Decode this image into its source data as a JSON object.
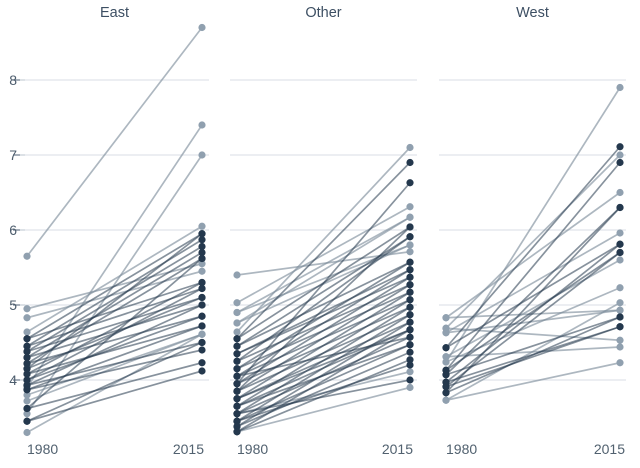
{
  "chart_data": {
    "type": "line",
    "subtype": "slopegraph-small-multiples",
    "title": "",
    "x_categories": [
      "1980",
      "2015"
    ],
    "y_tick_labels": [
      "8",
      "7",
      "6",
      "5",
      "4"
    ],
    "y_tick_values": [
      8,
      7,
      6,
      5,
      4
    ],
    "ylim": [
      3.2,
      8.9
    ],
    "grid": true,
    "legend": "none",
    "colors": {
      "dot_dark": "#24384d",
      "dot_light": "#90a0af",
      "line_dark": "rgba(36,56,77,0.55)",
      "line_light": "rgba(122,139,154,0.62)",
      "gridline": "#d8dee4",
      "tick_mark": "#6b7a8c",
      "axis_label": "#4c5c6c",
      "title_text": "#3d4f63"
    },
    "panels": [
      {
        "title": "East",
        "x_ticks": [
          "1980",
          "2015"
        ],
        "lines": [
          [
            5.65,
            8.7,
            "l"
          ],
          [
            3.9,
            7.4,
            "l"
          ],
          [
            3.55,
            7.0,
            "l"
          ],
          [
            4.95,
            5.55,
            "l"
          ],
          [
            4.83,
            5.45,
            "l"
          ],
          [
            4.64,
            6.05,
            "l"
          ],
          [
            3.8,
            4.61,
            "l"
          ],
          [
            3.72,
            4.61,
            "l"
          ],
          [
            3.3,
            4.61,
            "l"
          ],
          [
            4.55,
            5.95,
            "d"
          ],
          [
            4.55,
            5.3,
            "d"
          ],
          [
            4.45,
            5.87,
            "d"
          ],
          [
            4.45,
            5.22,
            "d"
          ],
          [
            4.38,
            5.78,
            "d"
          ],
          [
            4.38,
            5.1,
            "d"
          ],
          [
            4.3,
            5.7,
            "d"
          ],
          [
            4.3,
            5.0,
            "d"
          ],
          [
            4.22,
            5.62,
            "d"
          ],
          [
            4.22,
            4.85,
            "d"
          ],
          [
            4.15,
            5.95,
            "d"
          ],
          [
            4.15,
            5.1,
            "d"
          ],
          [
            4.08,
            5.3,
            "d"
          ],
          [
            4.08,
            4.72,
            "d"
          ],
          [
            4.0,
            5.22,
            "d"
          ],
          [
            4.0,
            4.85,
            "d"
          ],
          [
            3.93,
            5.0,
            "d"
          ],
          [
            3.93,
            4.5,
            "d"
          ],
          [
            3.87,
            4.72,
            "d"
          ],
          [
            3.87,
            4.4,
            "d"
          ],
          [
            3.62,
            4.23,
            "d"
          ],
          [
            3.62,
            5.62,
            "d"
          ],
          [
            3.45,
            4.5,
            "d"
          ],
          [
            3.45,
            4.12,
            "d"
          ]
        ]
      },
      {
        "title": "Other",
        "x_ticks": [
          "1980",
          "2015"
        ],
        "lines": [
          [
            5.4,
            5.71,
            "l"
          ],
          [
            5.03,
            6.31,
            "l"
          ],
          [
            4.9,
            6.17,
            "l"
          ],
          [
            4.76,
            5.8,
            "l"
          ],
          [
            4.64,
            7.1,
            "l"
          ],
          [
            4.9,
            5.8,
            "l"
          ],
          [
            4.76,
            6.17,
            "l"
          ],
          [
            3.55,
            4.11,
            "l"
          ],
          [
            3.31,
            3.9,
            "l"
          ],
          [
            4.55,
            6.9,
            "d"
          ],
          [
            4.55,
            6.04,
            "d"
          ],
          [
            4.45,
            5.91,
            "d"
          ],
          [
            4.45,
            5.57,
            "d"
          ],
          [
            4.35,
            5.47,
            "d"
          ],
          [
            4.35,
            5.37,
            "d"
          ],
          [
            4.25,
            5.27,
            "d"
          ],
          [
            4.25,
            5.91,
            "d"
          ],
          [
            4.15,
            5.17,
            "d"
          ],
          [
            4.15,
            5.57,
            "d"
          ],
          [
            4.05,
            5.07,
            "d"
          ],
          [
            4.05,
            5.47,
            "d"
          ],
          [
            4.05,
            4.57,
            "d"
          ],
          [
            3.95,
            6.63,
            "d"
          ],
          [
            3.95,
            4.97,
            "d"
          ],
          [
            3.95,
            5.37,
            "d"
          ],
          [
            3.85,
            4.87,
            "d"
          ],
          [
            3.85,
            5.27,
            "d"
          ],
          [
            3.85,
            6.04,
            "d"
          ],
          [
            3.75,
            4.77,
            "d"
          ],
          [
            3.75,
            5.17,
            "d"
          ],
          [
            3.75,
            4.67,
            "d"
          ],
          [
            3.65,
            4.67,
            "d"
          ],
          [
            3.65,
            5.07,
            "d"
          ],
          [
            3.65,
            4.47,
            "d"
          ],
          [
            3.55,
            4.57,
            "d"
          ],
          [
            3.55,
            4.97,
            "d"
          ],
          [
            3.55,
            4.0,
            "d"
          ],
          [
            3.45,
            4.47,
            "d"
          ],
          [
            3.45,
            4.87,
            "d"
          ],
          [
            3.45,
            4.2,
            "d"
          ],
          [
            3.38,
            4.37,
            "d"
          ],
          [
            3.38,
            4.77,
            "d"
          ],
          [
            3.31,
            4.27,
            "d"
          ],
          [
            3.31,
            4.67,
            "d"
          ]
        ]
      },
      {
        "title": "West",
        "x_ticks": [
          "1980",
          "2015"
        ],
        "lines": [
          [
            4.24,
            7.9,
            "l"
          ],
          [
            4.69,
            7.0,
            "l"
          ],
          [
            4.83,
            6.5,
            "l"
          ],
          [
            4.63,
            5.96,
            "l"
          ],
          [
            4.31,
            5.6,
            "l"
          ],
          [
            4.24,
            5.23,
            "l"
          ],
          [
            3.73,
            5.03,
            "l"
          ],
          [
            3.73,
            4.23,
            "l"
          ],
          [
            4.31,
            4.44,
            "l"
          ],
          [
            4.63,
            4.93,
            "l"
          ],
          [
            4.69,
            4.53,
            "l"
          ],
          [
            4.83,
            4.93,
            "l"
          ],
          [
            4.43,
            7.11,
            "d"
          ],
          [
            4.13,
            6.9,
            "d"
          ],
          [
            4.07,
            6.3,
            "d"
          ],
          [
            3.97,
            5.81,
            "d"
          ],
          [
            3.91,
            5.7,
            "d"
          ],
          [
            3.83,
            4.84,
            "d"
          ],
          [
            3.97,
            4.71,
            "d"
          ],
          [
            4.13,
            5.7,
            "d"
          ],
          [
            4.43,
            5.81,
            "d"
          ],
          [
            3.91,
            4.71,
            "d"
          ],
          [
            3.83,
            6.3,
            "d"
          ],
          [
            4.07,
            4.84,
            "d"
          ]
        ]
      }
    ]
  }
}
